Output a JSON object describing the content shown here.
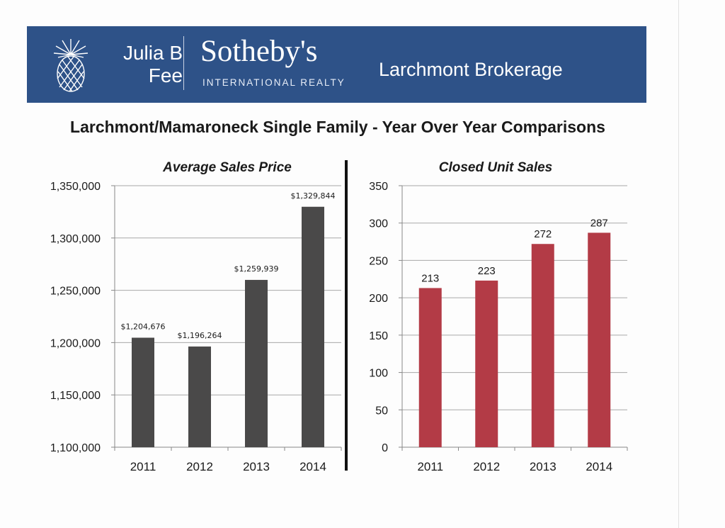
{
  "header": {
    "brand_line1": "Julia B",
    "brand_line2": "Fee",
    "brand_name": "Sotheby's",
    "brand_sub": "INTERNATIONAL REALTY",
    "brokerage": "Larchmont Brokerage",
    "bg_color": "#2e5288"
  },
  "page_title": "Larchmont/Mamaroneck Single Family - Year Over Year Comparisons",
  "chart_data": [
    {
      "type": "bar",
      "title": "Average Sales Price",
      "categories": [
        "2011",
        "2012",
        "2013",
        "2014"
      ],
      "values": [
        1204676,
        1196264,
        1259939,
        1329844
      ],
      "data_labels": [
        "$1,204,676",
        "$1,196,264",
        "$1,259,939",
        "$1,329,844"
      ],
      "ylim": [
        1100000,
        1350000
      ],
      "yticks": [
        1100000,
        1150000,
        1200000,
        1250000,
        1300000,
        1350000
      ],
      "ytick_labels": [
        "1,100,000",
        "1,150,000",
        "1,200,000",
        "1,250,000",
        "1,300,000",
        "1,350,000"
      ],
      "grid": true,
      "color": "#4a4949"
    },
    {
      "type": "bar",
      "title": "Closed Unit Sales",
      "categories": [
        "2011",
        "2012",
        "2013",
        "2014"
      ],
      "values": [
        213,
        223,
        272,
        287
      ],
      "data_labels": [
        "213",
        "223",
        "272",
        "287"
      ],
      "ylim": [
        0,
        350
      ],
      "yticks": [
        0,
        50,
        100,
        150,
        200,
        250,
        300,
        350
      ],
      "ytick_labels": [
        "0",
        "50",
        "100",
        "150",
        "200",
        "250",
        "300",
        "350"
      ],
      "grid": true,
      "color": "#b33b46"
    }
  ]
}
